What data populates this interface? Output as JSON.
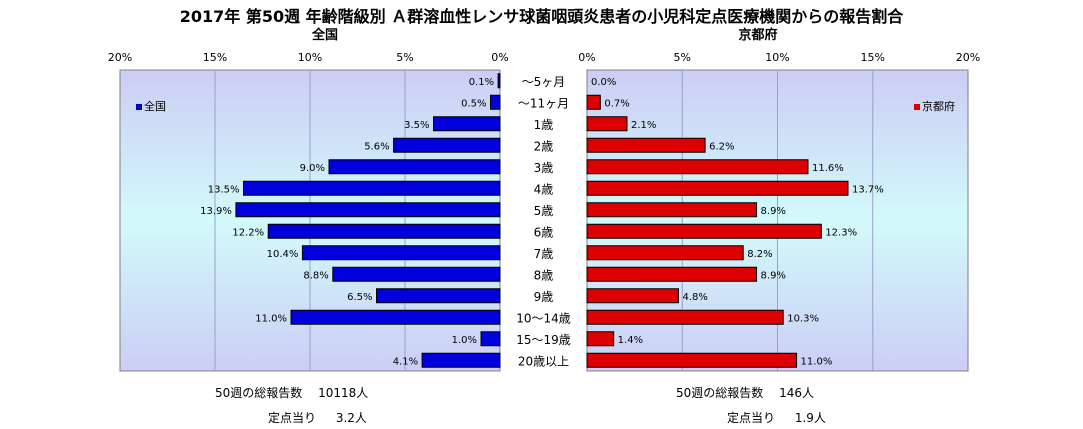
{
  "title": "2017年 第50週 年齢階級別 Ａ群溶血性レンサ球菌咽頭炎患者の小児科定点医療機関からの報告割合",
  "chart_data": {
    "type": "bar",
    "orientation": "horizontal-butterfly",
    "categories": [
      "～5ヶ月",
      "～11ヶ月",
      "1歳",
      "2歳",
      "3歳",
      "4歳",
      "5歳",
      "6歳",
      "7歳",
      "8歳",
      "9歳",
      "10～14歳",
      "15～19歳",
      "20歳以上"
    ],
    "panels": [
      {
        "title": "全国",
        "legend": "全国",
        "legend_position": "left",
        "direction": "left",
        "color": "#0000dd",
        "ticks": [
          "20%",
          "15%",
          "10%",
          "5%",
          "0%"
        ],
        "xlim": [
          0,
          20
        ],
        "values": [
          0.1,
          0.5,
          3.5,
          5.6,
          9.0,
          13.5,
          13.9,
          12.2,
          10.4,
          8.8,
          6.5,
          11.0,
          1.0,
          4.1
        ],
        "labels": [
          "0.1%",
          "0.5%",
          "3.5%",
          "5.6%",
          "9.0%",
          "13.5%",
          "13.9%",
          "12.2%",
          "10.4%",
          "8.8%",
          "6.5%",
          "11.0%",
          "1.0%",
          "4.1%"
        ]
      },
      {
        "title": "京都府",
        "legend": "京都府",
        "legend_position": "right",
        "direction": "right",
        "color": "#dd0000",
        "ticks": [
          "0%",
          "5%",
          "10%",
          "15%",
          "20%"
        ],
        "xlim": [
          0,
          20
        ],
        "values": [
          0.0,
          0.7,
          2.1,
          6.2,
          11.6,
          13.7,
          8.9,
          12.3,
          8.2,
          8.9,
          4.8,
          10.3,
          1.4,
          11.0
        ],
        "labels": [
          "0.0%",
          "0.7%",
          "2.1%",
          "6.2%",
          "11.6%",
          "13.7%",
          "8.9%",
          "12.3%",
          "8.2%",
          "8.9%",
          "4.8%",
          "10.3%",
          "1.4%",
          "11.0%"
        ]
      }
    ],
    "grid": "vertical"
  },
  "footer": {
    "national": {
      "total_label": "50週の総報告数",
      "total_value": "10118人",
      "per_label": "定点当り",
      "per_value": "3.2人"
    },
    "kyoto": {
      "total_label": "50週の総報告数",
      "total_value": "146人",
      "per_label": "定点当り",
      "per_value": "1.9人"
    }
  }
}
